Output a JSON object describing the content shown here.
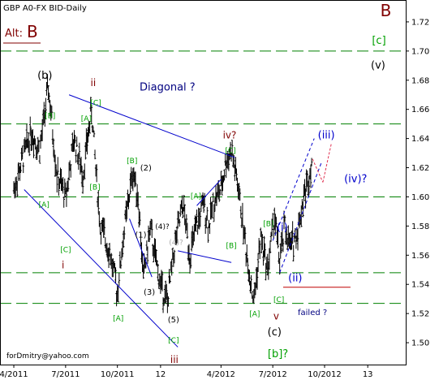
{
  "chart_data": {
    "type": "ohlc",
    "title": "GBP A0-FX BID-Daily",
    "ylim": [
      1.485,
      1.735
    ],
    "y_ticks": [
      1.5,
      1.52,
      1.54,
      1.56,
      1.58,
      1.6,
      1.62,
      1.64,
      1.66,
      1.68,
      1.7,
      1.72
    ],
    "x_ticks": [
      "4/2011",
      "7/2011",
      "10/2011",
      "12",
      "4/2012",
      "7/2012",
      "10/2012",
      "13"
    ],
    "x_tick_months": [
      0,
      3,
      6,
      8.5,
      12,
      15,
      18,
      20.5
    ],
    "x_range_months": [
      -0.8,
      22.7
    ],
    "price_path": [
      [
        0.0,
        1.605
      ],
      [
        0.5,
        1.625
      ],
      [
        1.0,
        1.645
      ],
      [
        1.5,
        1.632
      ],
      [
        2.0,
        1.675
      ],
      [
        2.5,
        1.615
      ],
      [
        3.0,
        1.6
      ],
      [
        3.5,
        1.64
      ],
      [
        4.0,
        1.615
      ],
      [
        4.5,
        1.66
      ],
      [
        5.0,
        1.58
      ],
      [
        5.5,
        1.565
      ],
      [
        6.0,
        1.535
      ],
      [
        6.4,
        1.578
      ],
      [
        6.9,
        1.618
      ],
      [
        7.2,
        1.6
      ],
      [
        7.5,
        1.545
      ],
      [
        7.9,
        1.578
      ],
      [
        8.2,
        1.558
      ],
      [
        8.5,
        1.54
      ],
      [
        8.9,
        1.528
      ],
      [
        9.3,
        1.565
      ],
      [
        9.8,
        1.595
      ],
      [
        10.2,
        1.56
      ],
      [
        10.6,
        1.58
      ],
      [
        11.0,
        1.595
      ],
      [
        11.3,
        1.58
      ],
      [
        11.6,
        1.598
      ],
      [
        12.0,
        1.605
      ],
      [
        12.3,
        1.625
      ],
      [
        12.6,
        1.632
      ],
      [
        13.0,
        1.606
      ],
      [
        13.5,
        1.56
      ],
      [
        13.9,
        1.528
      ],
      [
        14.3,
        1.572
      ],
      [
        14.7,
        1.55
      ],
      [
        15.1,
        1.588
      ],
      [
        15.4,
        1.555
      ],
      [
        15.7,
        1.58
      ],
      [
        16.0,
        1.565
      ],
      [
        16.4,
        1.575
      ],
      [
        16.8,
        1.6
      ],
      [
        17.1,
        1.615
      ],
      [
        17.3,
        1.628
      ]
    ],
    "horizontal_levels": [
      1.7,
      1.65,
      1.6,
      1.548,
      1.527
    ],
    "failed_level": 1.538,
    "trendlines": [
      {
        "points": [
          [
            3.2,
            1.67
          ],
          [
            12.8,
            1.627
          ]
        ],
        "color": "#0000cc"
      },
      {
        "points": [
          [
            0.6,
            1.605
          ],
          [
            9.5,
            1.497
          ]
        ],
        "color": "#0000cc"
      },
      {
        "points": [
          [
            6.7,
            1.585
          ],
          [
            8.0,
            1.545
          ]
        ],
        "color": "#0000cc"
      },
      {
        "points": [
          [
            9.5,
            1.563
          ],
          [
            12.6,
            1.555
          ]
        ],
        "color": "#0000cc"
      },
      {
        "points": [
          [
            10.6,
            1.594
          ],
          [
            12.0,
            1.612
          ]
        ],
        "color": "#0000cc"
      },
      {
        "points": [
          [
            15.4,
            1.548
          ],
          [
            17.8,
            1.623
          ]
        ],
        "color": "#0000cc",
        "dash": "4,3"
      },
      {
        "points": [
          [
            15.0,
            1.57
          ],
          [
            17.4,
            1.64
          ]
        ],
        "color": "#0000cc",
        "dash": "4,3"
      },
      {
        "points": [
          [
            17.3,
            1.626
          ],
          [
            17.9,
            1.61
          ]
        ],
        "color": "#e03050",
        "dash": "3,2"
      },
      {
        "points": [
          [
            17.9,
            1.61
          ],
          [
            18.4,
            1.637
          ]
        ],
        "color": "#e03050",
        "dash": "3,2"
      }
    ],
    "annotations": [
      {
        "text": "B",
        "x": 21.55,
        "y": 1.724,
        "color": "#800000",
        "size": 20
      },
      {
        "text": "[c]",
        "x": 21.15,
        "y": 1.705,
        "color": "#00a000",
        "size": 13
      },
      {
        "text": "(v)",
        "x": 21.1,
        "y": 1.688,
        "color": "#000000",
        "size": 13
      },
      {
        "text": "(b)",
        "x": 1.8,
        "y": 1.681,
        "color": "#000000",
        "size": 13
      },
      {
        "text": "ii",
        "x": 4.6,
        "y": 1.676,
        "color": "#800000",
        "size": 12
      },
      {
        "text": "[C]",
        "x": 4.75,
        "y": 1.663,
        "color": "#00a000",
        "size": 9
      },
      {
        "text": "[B]",
        "x": 2.1,
        "y": 1.654,
        "color": "#00a000",
        "size": 9
      },
      {
        "text": "[A]",
        "x": 4.2,
        "y": 1.652,
        "color": "#00a000",
        "size": 9
      },
      {
        "text": "Diagonal ?",
        "x": 8.9,
        "y": 1.673,
        "color": "#000080",
        "size": 13
      },
      {
        "text": "iv?",
        "x": 12.5,
        "y": 1.64,
        "color": "#800000",
        "size": 12
      },
      {
        "text": "[C]",
        "x": 12.55,
        "y": 1.63,
        "color": "#00a000",
        "size": 9
      },
      {
        "text": "(iii)",
        "x": 18.1,
        "y": 1.64,
        "color": "#0000cc",
        "size": 13
      },
      {
        "text": "(iv)?",
        "x": 19.8,
        "y": 1.61,
        "color": "#0000cc",
        "size": 13
      },
      {
        "text": "[B]",
        "x": 6.85,
        "y": 1.623,
        "color": "#00a000",
        "size": 9
      },
      {
        "text": "(2)",
        "x": 7.65,
        "y": 1.618,
        "color": "#000000",
        "size": 10
      },
      {
        "text": "[A]",
        "x": 1.75,
        "y": 1.593,
        "color": "#00a000",
        "size": 9
      },
      {
        "text": "[B]",
        "x": 4.7,
        "y": 1.605,
        "color": "#00a000",
        "size": 9
      },
      {
        "text": "[A]",
        "x": 10.55,
        "y": 1.599,
        "color": "#00a000",
        "size": 9
      },
      {
        "text": "(4)?",
        "x": 8.6,
        "y": 1.578,
        "color": "#000000",
        "size": 9
      },
      {
        "text": "(1)",
        "x": 7.35,
        "y": 1.572,
        "color": "#000000",
        "size": 10
      },
      {
        "text": "(4)?",
        "x": 9.4,
        "y": 1.567,
        "color": "#aaaaaa",
        "size": 9
      },
      {
        "text": "[B]",
        "x": 14.75,
        "y": 1.58,
        "color": "#00a000",
        "size": 9
      },
      {
        "text": "(i)",
        "x": 15.55,
        "y": 1.577,
        "color": "#0000cc",
        "size": 13
      },
      {
        "text": "[B]",
        "x": 12.6,
        "y": 1.565,
        "color": "#00a000",
        "size": 9
      },
      {
        "text": "[C]",
        "x": 3.0,
        "y": 1.562,
        "color": "#00a000",
        "size": 9
      },
      {
        "text": "i",
        "x": 2.85,
        "y": 1.551,
        "color": "#800000",
        "size": 12
      },
      {
        "text": "(ii)",
        "x": 16.3,
        "y": 1.542,
        "color": "#0000cc",
        "size": 13
      },
      {
        "text": "[C]",
        "x": 15.35,
        "y": 1.528,
        "color": "#00a000",
        "size": 9
      },
      {
        "text": "(3)",
        "x": 7.85,
        "y": 1.533,
        "color": "#000000",
        "size": 10
      },
      {
        "text": "[A]",
        "x": 6.05,
        "y": 1.515,
        "color": "#00a000",
        "size": 9
      },
      {
        "text": "(5)",
        "x": 9.25,
        "y": 1.514,
        "color": "#000000",
        "size": 10
      },
      {
        "text": "[A]",
        "x": 13.95,
        "y": 1.518,
        "color": "#00a000",
        "size": 9
      },
      {
        "text": "v",
        "x": 15.2,
        "y": 1.516,
        "color": "#800000",
        "size": 12
      },
      {
        "text": "failed ?",
        "x": 17.3,
        "y": 1.519,
        "color": "#000080",
        "size": 10
      },
      {
        "text": "(c)",
        "x": 15.1,
        "y": 1.505,
        "color": "#000000",
        "size": 13
      },
      {
        "text": "[C]",
        "x": 9.25,
        "y": 1.5,
        "color": "#00a000",
        "size": 9
      },
      {
        "text": "[b]?",
        "x": 15.3,
        "y": 1.49,
        "color": "#00a000",
        "size": 13
      },
      {
        "text": "iii",
        "x": 9.3,
        "y": 1.486,
        "color": "#800000",
        "size": 12
      }
    ]
  },
  "alt_label": {
    "prefix": "Alt:",
    "value": "B"
  },
  "email": "forDmitry@yahoo.com",
  "colors": {
    "bars": "#000000",
    "grid_dash": "#008000",
    "blue": "#0000cc",
    "maroon": "#800000",
    "green": "#00a000",
    "failed": "#c00000"
  }
}
